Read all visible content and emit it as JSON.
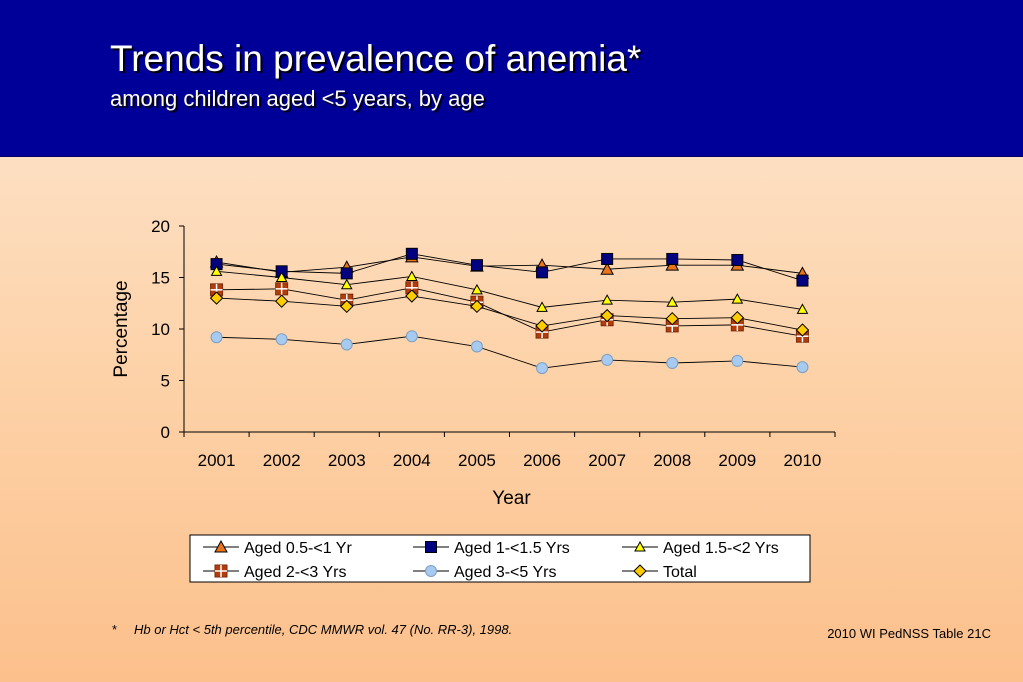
{
  "header": {
    "title": "Trends in prevalence of anemia*",
    "subtitle": "among children aged <5 years, by age"
  },
  "footnote": {
    "marker": "*",
    "text": "Hb or Hct < 5th percentile, CDC MMWR vol. 47 (No. RR-3), 1998."
  },
  "source": "2010 WI PedNSS Table 21C",
  "colors": {
    "header_bg": "#000099",
    "aged_05_1": "#e8741c",
    "aged_1_15": "#000080",
    "aged_15_2": "#ffff00",
    "aged_2_3": "#b23c0c",
    "aged_3_5": "#a6caf0",
    "total": "#ffcc00"
  },
  "chart_data": {
    "type": "line",
    "title": "",
    "xlabel": "Year",
    "ylabel": "Percentage",
    "categories": [
      "2001",
      "2002",
      "2003",
      "2004",
      "2005",
      "2006",
      "2007",
      "2008",
      "2009",
      "2010"
    ],
    "yticks": [
      "0",
      "5",
      "10",
      "15",
      "20"
    ],
    "ylim": [
      0,
      20
    ],
    "grid": false,
    "legend": "bottom",
    "series": [
      {
        "name": "Aged 0.5-<1 Yr",
        "marker": "triangle",
        "color": "#e8741c",
        "values": [
          16.5,
          15.5,
          16.0,
          17.0,
          16.1,
          16.2,
          15.8,
          16.2,
          16.2,
          15.4
        ]
      },
      {
        "name": "Aged 1-<1.5 Yrs",
        "marker": "square",
        "color": "#000080",
        "values": [
          16.3,
          15.6,
          15.4,
          17.3,
          16.2,
          15.5,
          16.8,
          16.8,
          16.7,
          14.7
        ]
      },
      {
        "name": "Aged 1.5-<2 Yrs",
        "marker": "triangle-small",
        "color": "#ffff00",
        "values": [
          15.6,
          15.0,
          14.3,
          15.1,
          13.8,
          12.1,
          12.8,
          12.6,
          12.9,
          11.9
        ]
      },
      {
        "name": "Aged 2-<3 Yrs",
        "marker": "cross-square",
        "color": "#b23c0c",
        "values": [
          13.8,
          13.9,
          12.8,
          14.0,
          12.6,
          9.7,
          10.9,
          10.3,
          10.4,
          9.3
        ]
      },
      {
        "name": "Aged 3-<5 Yrs",
        "marker": "circle",
        "color": "#a6caf0",
        "values": [
          9.2,
          9.0,
          8.5,
          9.3,
          8.3,
          6.2,
          7.0,
          6.7,
          6.9,
          6.3
        ]
      },
      {
        "name": "Total",
        "marker": "diamond",
        "color": "#ffcc00",
        "values": [
          13.0,
          12.7,
          12.2,
          13.2,
          12.2,
          10.3,
          11.3,
          11.0,
          11.1,
          9.9
        ]
      }
    ]
  }
}
